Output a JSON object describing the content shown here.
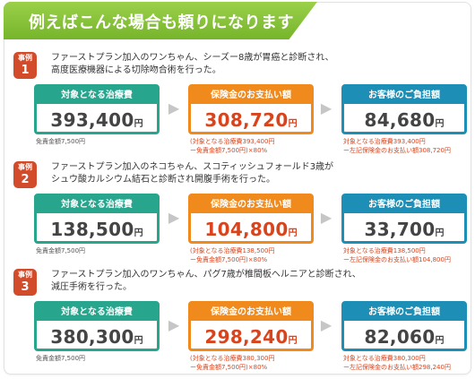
{
  "header": {
    "title": "例えばこんな場合も頼りになります"
  },
  "labels": {
    "cost": "対象となる治療費",
    "insurance": "保険金のお支払い額",
    "customer": "お客様のご負担額",
    "yen": "円",
    "badge": "事例"
  },
  "cases": [
    {
      "num": "1",
      "desc_line1": "ファーストプラン加入のワンちゃん、シーズー8歳が胃癌と診断され、",
      "desc_line2": "高度医療機器による切除吻合術を行った。",
      "cost": "393,400",
      "insurance": "308,720",
      "customer": "84,680",
      "deductible_note": "免責金額7,500円",
      "ins_note_1": "(対象となる治療費393,400円",
      "ins_note_2": "ー免責金額7,500円)×80%",
      "cust_note_1": "対象となる治療費393,400円",
      "cust_note_2": "ー左記保険金のお支払い額308,720円"
    },
    {
      "num": "2",
      "desc_line1": "ファーストプラン加入のネコちゃん、スコティッシュフォールド3歳が",
      "desc_line2": "シュウ酸カルシウム結石と診断され開腹手術を行った。",
      "cost": "138,500",
      "insurance": "104,800",
      "customer": "33,700",
      "deductible_note": "免責金額7,500円",
      "ins_note_1": "(対象となる治療費138,500円",
      "ins_note_2": "ー免責金額7,500円)×80%",
      "cust_note_1": "対象となる治療費138,500円",
      "cust_note_2": "ー左記保険金のお支払い額104,800円"
    },
    {
      "num": "3",
      "desc_line1": "ファーストプラン加入のワンちゃん、パグ7歳が椎間板ヘルニアと診断され、",
      "desc_line2": "減圧手術を行った。",
      "cost": "380,300",
      "insurance": "298,240",
      "customer": "82,060",
      "deductible_note": "免責金額7,500円",
      "ins_note_1": "(対象となる治療費380,300円",
      "ins_note_2": "ー免責金額7,500円)×80%",
      "cust_note_1": "対象となる治療費380,300円",
      "cust_note_2": "ー左記保険金のお支払い額298,240円"
    }
  ],
  "colors": {
    "header_green": "#76b52b",
    "badge_red": "#d24b2b",
    "cost_teal": "#27a58d",
    "insurance_orange": "#f08a1c",
    "customer_blue": "#1d8fb6",
    "amount_red": "#d9441d"
  },
  "icons": {
    "arrow": "arrow-right-icon"
  }
}
